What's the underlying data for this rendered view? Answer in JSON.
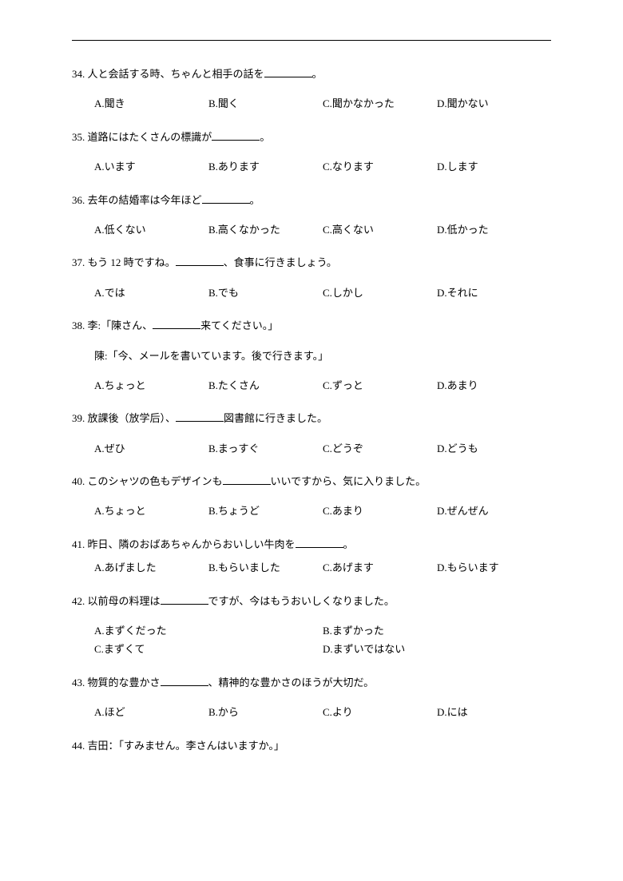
{
  "blank_placeholder": " ",
  "period": "。",
  "comma": "、",
  "questions": [
    {
      "num": "34.",
      "pre": "人と会話する時、ちゃんと相手の話を",
      "post": "。",
      "cols": 4,
      "choices": [
        "A.聞き",
        "B.聞く",
        "C.聞かなかった",
        "D.聞かない"
      ]
    },
    {
      "num": "35.",
      "pre": "道路にはたくさんの標識が",
      "post": "。",
      "cols": 4,
      "choices": [
        "A.います",
        "B.あります",
        "C.なります",
        "D.します"
      ]
    },
    {
      "num": "36.",
      "pre": "去年の結婚率は今年ほど",
      "post": "。",
      "cols": 4,
      "choices": [
        "A.低くない",
        "B.高くなかった",
        "C.高くない",
        "D.低かった"
      ]
    },
    {
      "num": "37.",
      "pre": "もう 12 時ですね。",
      "post": "、食事に行きましょう。",
      "cols": 4,
      "choices": [
        "A.では",
        "B.でも",
        "C.しかし",
        "D.それに"
      ]
    },
    {
      "num": "38.",
      "pre": "李:「陳さん、",
      "post": "来てください。」",
      "extra": "陳:「今、メールを書いています。後で行きます。」",
      "cols": 4,
      "choices": [
        "A.ちょっと",
        "B.たくさん",
        "C.ずっと",
        "D.あまり"
      ]
    },
    {
      "num": "39.",
      "pre": "放課後（放学后）、",
      "post": "図書館に行きました。",
      "cols": 4,
      "choices": [
        "A.ぜひ",
        "B.まっすぐ",
        "C.どうぞ",
        "D.どうも"
      ]
    },
    {
      "num": "40.",
      "pre": "このシャツの色もデザインも",
      "post": "いいですから、気に入りました。",
      "cols": 4,
      "choices": [
        "A.ちょっと",
        "B.ちょうど",
        "C.あまり",
        "D.ぜんぜん"
      ]
    },
    {
      "num": "41.",
      "pre": "昨日、隣のおばあちゃんからおいしい牛肉を",
      "post": "。",
      "cols": 4,
      "tight": true,
      "choices": [
        "A.あげました",
        "B.もらいました",
        "C.あげます",
        "D.もらいます"
      ]
    },
    {
      "num": "42.",
      "pre": "以前母の料理は",
      "post": "ですが、今はもうおいしくなりました。",
      "cols": 2,
      "choices": [
        "A.まずくだった",
        "B.まずかった",
        "C.まずくて",
        "D.まずいではない"
      ]
    },
    {
      "num": "43.",
      "pre": "物質的な豊かさ",
      "post": "、精神的な豊かさのほうが大切だ。",
      "cols": 4,
      "choices": [
        "A.ほど",
        "B.から",
        "C.より",
        "D.には"
      ]
    },
    {
      "num": "44.",
      "pre": "吉田：「すみません。李さんはいますか。」",
      "no_blank": true,
      "cols": 0,
      "choices": []
    }
  ]
}
